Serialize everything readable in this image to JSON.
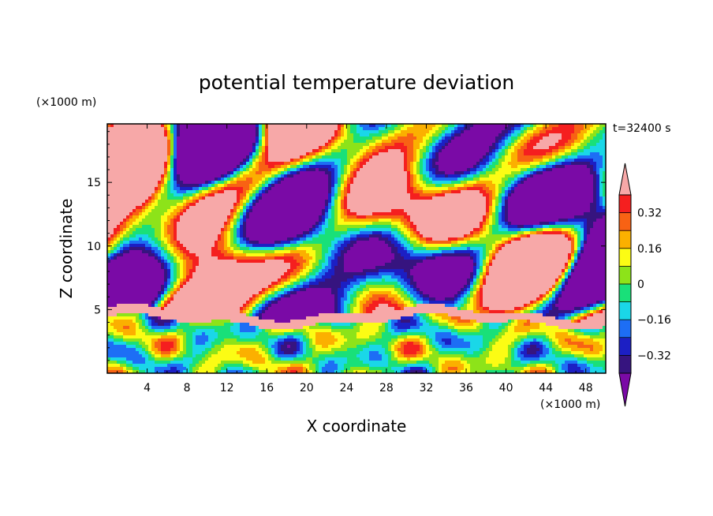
{
  "chart_data": {
    "type": "heatmap",
    "title": "potential temperature deviation",
    "time_label": "t=32400 s",
    "xlabel": "X coordinate",
    "ylabel": "Z coordinate",
    "x_unit": "(×1000 m)",
    "y_unit": "(×1000 m)",
    "xlim": [
      0,
      50
    ],
    "ylim": [
      0,
      19.6
    ],
    "x_ticks": [
      4,
      8,
      12,
      16,
      20,
      24,
      28,
      32,
      36,
      40,
      44,
      48
    ],
    "y_ticks": [
      5,
      10,
      15
    ],
    "colorbar": {
      "levels": [
        -0.4,
        -0.32,
        -0.24,
        -0.16,
        -0.08,
        0,
        0.08,
        0.16,
        0.24,
        0.32,
        0.4
      ],
      "tick_labels": [
        "0.32",
        "0.16",
        "0",
        "−0.16",
        "−0.32"
      ],
      "tick_values": [
        0.32,
        0.16,
        0,
        -0.16,
        -0.32
      ],
      "colors": [
        "#7a0aa6",
        "#36147f",
        "#1c1fc4",
        "#1d6ef5",
        "#1ad7e8",
        "#19e079",
        "#8de319",
        "#fcfc14",
        "#fbb000",
        "#f86214",
        "#f51f1f",
        "#f7a8a8"
      ],
      "extend": "both"
    }
  }
}
